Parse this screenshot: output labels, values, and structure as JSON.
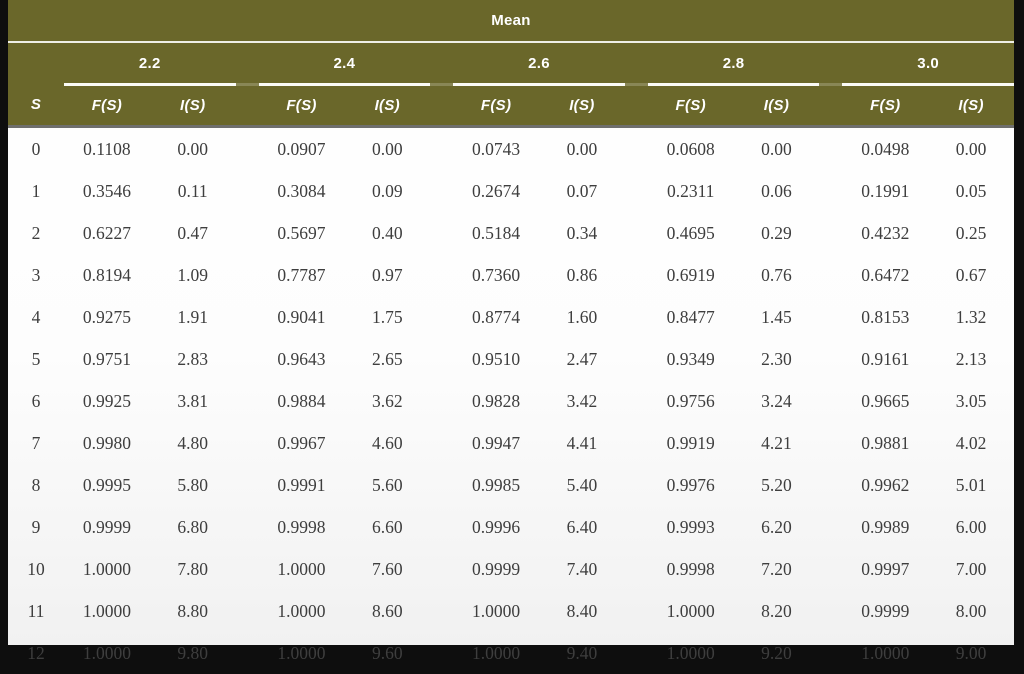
{
  "table": {
    "title": "Mean",
    "row_header": "S",
    "subheaders": [
      "F(S)",
      "I(S)"
    ],
    "groups": [
      "2.2",
      "2.4",
      "2.6",
      "2.8",
      "3.0"
    ],
    "rows": [
      {
        "s": "0",
        "values": [
          "0.1108",
          "0.00",
          "0.0907",
          "0.00",
          "0.0743",
          "0.00",
          "0.0608",
          "0.00",
          "0.0498",
          "0.00"
        ]
      },
      {
        "s": "1",
        "values": [
          "0.3546",
          "0.11",
          "0.3084",
          "0.09",
          "0.2674",
          "0.07",
          "0.2311",
          "0.06",
          "0.1991",
          "0.05"
        ]
      },
      {
        "s": "2",
        "values": [
          "0.6227",
          "0.47",
          "0.5697",
          "0.40",
          "0.5184",
          "0.34",
          "0.4695",
          "0.29",
          "0.4232",
          "0.25"
        ]
      },
      {
        "s": "3",
        "values": [
          "0.8194",
          "1.09",
          "0.7787",
          "0.97",
          "0.7360",
          "0.86",
          "0.6919",
          "0.76",
          "0.6472",
          "0.67"
        ]
      },
      {
        "s": "4",
        "values": [
          "0.9275",
          "1.91",
          "0.9041",
          "1.75",
          "0.8774",
          "1.60",
          "0.8477",
          "1.45",
          "0.8153",
          "1.32"
        ]
      },
      {
        "s": "5",
        "values": [
          "0.9751",
          "2.83",
          "0.9643",
          "2.65",
          "0.9510",
          "2.47",
          "0.9349",
          "2.30",
          "0.9161",
          "2.13"
        ]
      },
      {
        "s": "6",
        "values": [
          "0.9925",
          "3.81",
          "0.9884",
          "3.62",
          "0.9828",
          "3.42",
          "0.9756",
          "3.24",
          "0.9665",
          "3.05"
        ]
      },
      {
        "s": "7",
        "values": [
          "0.9980",
          "4.80",
          "0.9967",
          "4.60",
          "0.9947",
          "4.41",
          "0.9919",
          "4.21",
          "0.9881",
          "4.02"
        ]
      },
      {
        "s": "8",
        "values": [
          "0.9995",
          "5.80",
          "0.9991",
          "5.60",
          "0.9985",
          "5.40",
          "0.9976",
          "5.20",
          "0.9962",
          "5.01"
        ]
      },
      {
        "s": "9",
        "values": [
          "0.9999",
          "6.80",
          "0.9998",
          "6.60",
          "0.9996",
          "6.40",
          "0.9993",
          "6.20",
          "0.9989",
          "6.00"
        ]
      },
      {
        "s": "10",
        "values": [
          "1.0000",
          "7.80",
          "1.0000",
          "7.60",
          "0.9999",
          "7.40",
          "0.9998",
          "7.20",
          "0.9997",
          "7.00"
        ]
      },
      {
        "s": "11",
        "values": [
          "1.0000",
          "8.80",
          "1.0000",
          "8.60",
          "1.0000",
          "8.40",
          "1.0000",
          "8.20",
          "0.9999",
          "8.00"
        ]
      },
      {
        "s": "12",
        "values": [
          "1.0000",
          "9.80",
          "1.0000",
          "9.60",
          "1.0000",
          "9.40",
          "1.0000",
          "9.20",
          "1.0000",
          "9.00"
        ]
      }
    ]
  },
  "colors": {
    "header_bg": "#6a672a",
    "header_text": "#ffffff",
    "data_text": "#3e3e3e",
    "frame_border": "#0e0e0e",
    "header_underline": "#fbfbf6",
    "header_bottom_line": "#6f6f6d"
  }
}
